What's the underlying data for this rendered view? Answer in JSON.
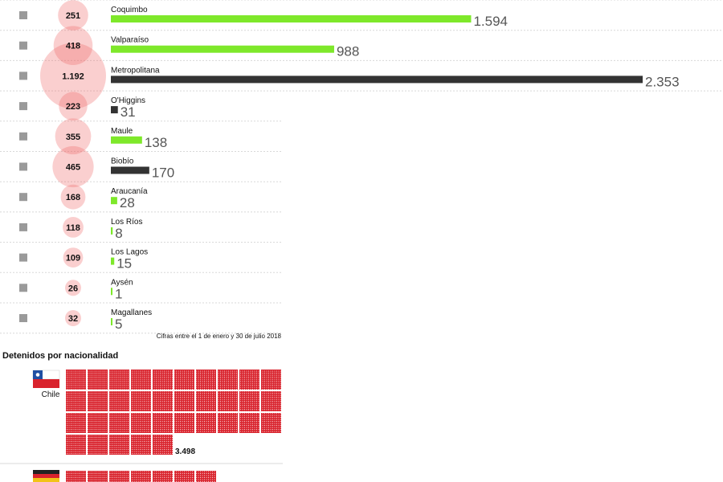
{
  "chart_data": [
    {
      "type": "bar",
      "categories": [
        "Coquimbo",
        "Valparaíso",
        "Metropolitana",
        "O'Higgins",
        "Maule",
        "Biobío",
        "Araucanía",
        "Los Ríos",
        "Los Lagos",
        "Aysén",
        "Magallanes"
      ],
      "bubble_values": [
        251,
        418,
        1192,
        223,
        355,
        465,
        168,
        118,
        109,
        26,
        32
      ],
      "bubble_labels": [
        "251",
        "418",
        "1.192",
        "223",
        "355",
        "465",
        "168",
        "118",
        "109",
        "26",
        "32"
      ],
      "values": [
        1594,
        988,
        2353,
        31,
        138,
        170,
        28,
        8,
        15,
        1,
        5
      ],
      "value_labels": [
        "1.594",
        "988",
        "2.353",
        "31",
        "138",
        "170",
        "28",
        "8",
        "15",
        "1",
        "5"
      ],
      "bar_colors": [
        "#7ee82a",
        "#7ee82a",
        "#333333",
        "#333333",
        "#7ee82a",
        "#333333",
        "#7ee82a",
        "#7ee82a",
        "#7ee82a",
        "#7ee82a",
        "#7ee82a"
      ],
      "bubble_color": "#f06b6b",
      "map_icon_color": "#9a9a9a",
      "note": "Cifras entre el 1 de enero y 30 de julio 2018"
    },
    {
      "type": "waffle",
      "title": "Detenidos por nacionalidad",
      "series": [
        {
          "name": "Chile",
          "value": 3498,
          "value_label": "3.498",
          "flag": "chile-flag"
        },
        {
          "name": "",
          "value": 0,
          "value_label": "",
          "flag": "germany-flag"
        }
      ],
      "color": "#d9232d",
      "block_row_visible": 7
    }
  ]
}
